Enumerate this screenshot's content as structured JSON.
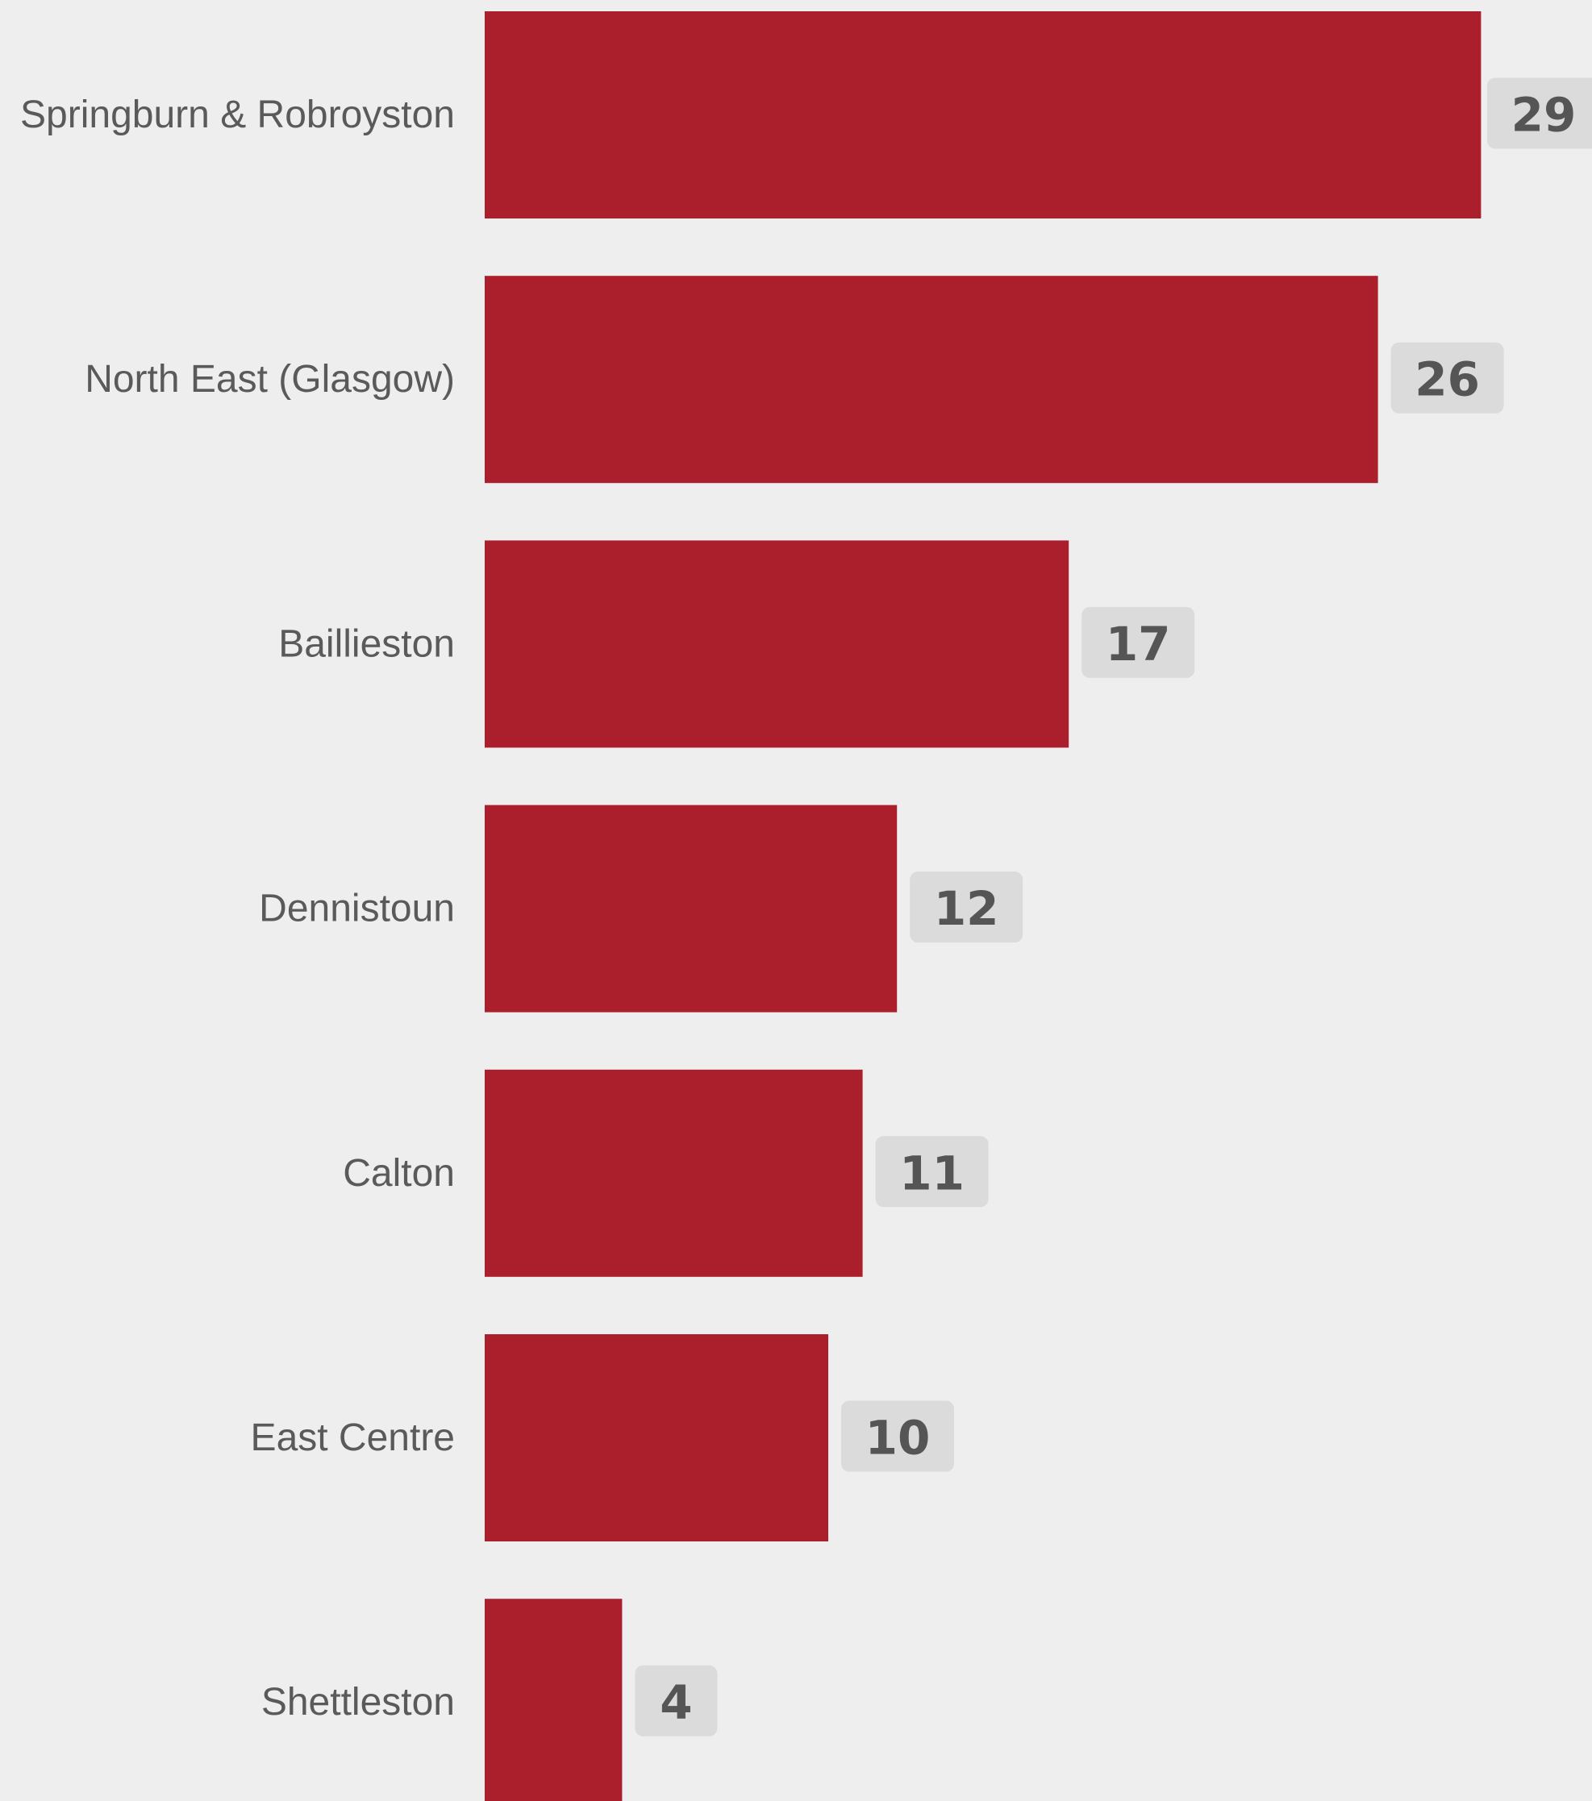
{
  "chart_data": {
    "type": "bar",
    "orientation": "horizontal",
    "categories": [
      "Springburn & Robroyston",
      "North East (Glasgow)",
      "Baillieston",
      "Dennistoun",
      "Calton",
      "East Centre",
      "Shettleston"
    ],
    "values": [
      29,
      26,
      17,
      12,
      11,
      10,
      4
    ],
    "title": "",
    "xlabel": "",
    "ylabel": "",
    "grid": false,
    "data_labels": true
  },
  "colors": {
    "background": "#efeeee",
    "bar": "#ab1f2d",
    "label_badge": "#dbdbdb",
    "text": "#5a5a5a"
  }
}
